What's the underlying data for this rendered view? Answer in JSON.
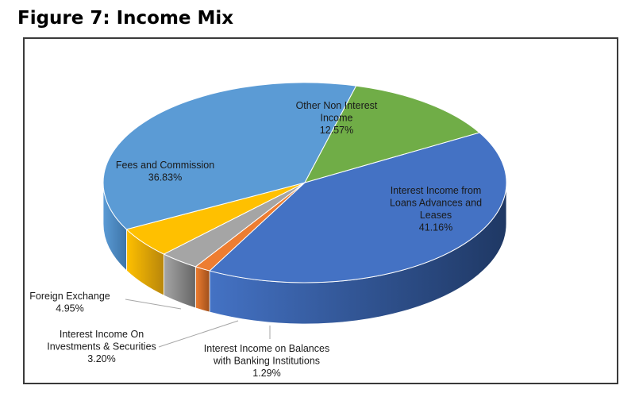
{
  "figure": {
    "title": "Figure 7: Income Mix"
  },
  "chart_data": {
    "type": "pie",
    "title": "",
    "slices": [
      {
        "label_lines": [
          "Interest Income from",
          "Loans Advances and",
          "Leases"
        ],
        "value": 41.16,
        "value_label": "41.16%",
        "color": "#4472C4",
        "side_color": "#1F3864"
      },
      {
        "label_lines": [
          "Interest Income on Balances",
          "with Banking Institutions"
        ],
        "value": 1.29,
        "value_label": "1.29%",
        "color": "#ED7D31",
        "side_color": "#A0501C"
      },
      {
        "label_lines": [
          "Interest Income On",
          "Investments & Securities"
        ],
        "value": 3.2,
        "value_label": "3.20%",
        "color": "#A5A5A5",
        "side_color": "#666666"
      },
      {
        "label_lines": [
          "Foreign Exchange"
        ],
        "value": 4.95,
        "value_label": "4.95%",
        "color": "#FFC000",
        "side_color": "#B8860B"
      },
      {
        "label_lines": [
          "Fees and Commission"
        ],
        "value": 36.83,
        "value_label": "36.83%",
        "color": "#5B9BD5",
        "side_color": "#3D74A8"
      },
      {
        "label_lines": [
          "Other Non Interest",
          "Income"
        ],
        "value": 12.57,
        "value_label": "12.57%",
        "color": "#70AD47",
        "side_color": "#4A7A2C"
      }
    ]
  }
}
